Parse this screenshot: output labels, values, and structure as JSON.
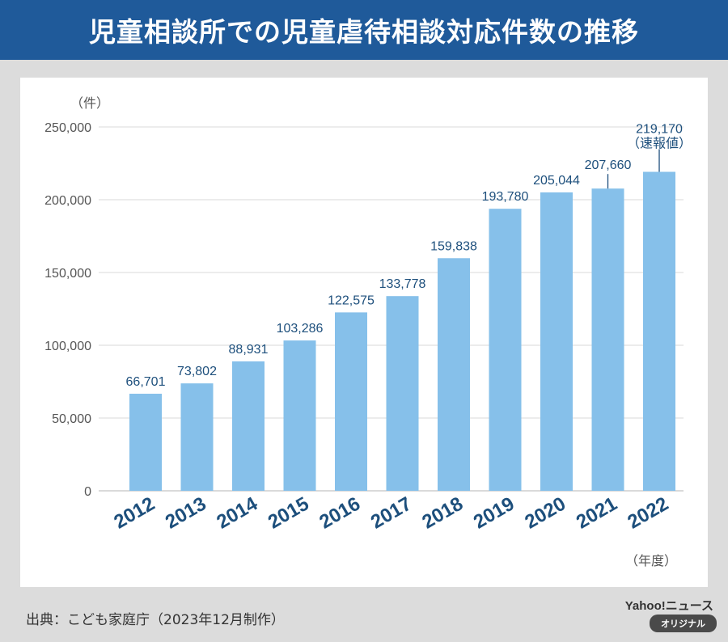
{
  "header": {
    "title": "児童相談所での児童虐待相談対応件数の推移"
  },
  "footer": {
    "source": "出典：こども家庭庁（2023年12月制作）",
    "brand": "Yahoo!ニュース",
    "badge": "オリジナル"
  },
  "colors": {
    "bar": "#86c0ea",
    "title_bg": "#1f5a9a",
    "label": "#1d4f7c",
    "axis_text": "#555555"
  },
  "chart_data": {
    "type": "bar",
    "title": "児童相談所での児童虐待相談対応件数の推移",
    "ylabel": "（件）",
    "xlabel": "（年度）",
    "ylim": [
      0,
      250000
    ],
    "yticks": [
      0,
      50000,
      100000,
      150000,
      200000,
      250000
    ],
    "ytick_labels": [
      "0",
      "50,000",
      "100,000",
      "150,000",
      "200,000",
      "250,000"
    ],
    "categories": [
      "2012",
      "2013",
      "2014",
      "2015",
      "2016",
      "2017",
      "2018",
      "2019",
      "2020",
      "2021",
      "2022"
    ],
    "values": [
      66701,
      73802,
      88931,
      103286,
      122575,
      133778,
      159838,
      193780,
      205044,
      207660,
      219170
    ],
    "value_labels": [
      "66,701",
      "73,802",
      "88,931",
      "103,286",
      "122,575",
      "133,778",
      "159,838",
      "193,780",
      "205,044",
      "207,660",
      "219,170"
    ],
    "annotation": "（速報値）",
    "grid": true,
    "legend": "none"
  }
}
